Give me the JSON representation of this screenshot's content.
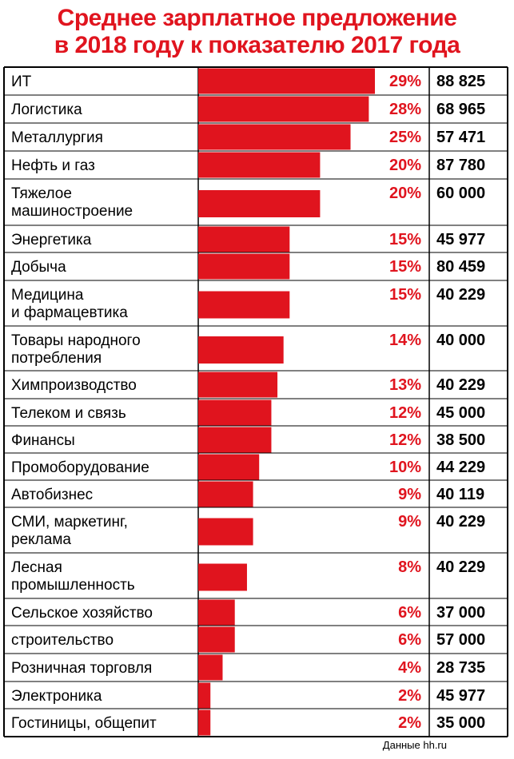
{
  "title_line1": "Среднее зарплатное предложение",
  "title_line2": "в 2018 году к показателю 2017 года",
  "source": "Данные hh.ru",
  "colors": {
    "accent": "#e0141e",
    "text": "#000000",
    "border": "#000000"
  },
  "chart_data": {
    "type": "bar",
    "orientation": "horizontal",
    "title": "Среднее зарплатное предложение в 2018 году к показателю 2017 года",
    "categories": [
      [
        "ИТ"
      ],
      [
        "Логистика"
      ],
      [
        "Металлургия"
      ],
      [
        "Нефть и газ"
      ],
      [
        "Тяжелое",
        "машиностроение"
      ],
      [
        "Энергетика"
      ],
      [
        "Добыча"
      ],
      [
        "Медицина",
        "и фармацевтика"
      ],
      [
        "Товары народного",
        "потребления"
      ],
      [
        "Химпроизводство"
      ],
      [
        "Телеком и связь"
      ],
      [
        "Финансы"
      ],
      [
        "Промоборудование"
      ],
      [
        "Автобизнес"
      ],
      [
        "СМИ, маркетинг,",
        "реклама"
      ],
      [
        "Лесная",
        "промышленность"
      ],
      [
        "Сельское хозяйство"
      ],
      [
        "строительство"
      ],
      [
        "Розничная торговля"
      ],
      [
        "Электроника"
      ],
      [
        "Гостиницы, общепит"
      ]
    ],
    "series": [
      {
        "unit": "%",
        "values": [
          29,
          28,
          25,
          20,
          20,
          15,
          15,
          15,
          14,
          13,
          12,
          12,
          10,
          9,
          9,
          8,
          6,
          6,
          4,
          2,
          2
        ]
      }
    ],
    "value_labels": [
      "29%",
      "28%",
      "25%",
      "20%",
      "20%",
      "15%",
      "15%",
      "15%",
      "14%",
      "13%",
      "12%",
      "12%",
      "10%",
      "9%",
      "9%",
      "8%",
      "6%",
      "6%",
      "4%",
      "2%",
      "2%"
    ],
    "salaries": [
      "88 825",
      "68 965",
      "57 471",
      "87 780",
      "60 000",
      "45 977",
      "80 459",
      "40 229",
      "40 000",
      "40 229",
      "45 000",
      "38 500",
      "44 229",
      "40 119",
      "40 229",
      "40 229",
      "37 000",
      "57 000",
      "28 735",
      "45 977",
      "35 000"
    ],
    "xlim": [
      0,
      29
    ],
    "grid": false,
    "legend": "none"
  }
}
